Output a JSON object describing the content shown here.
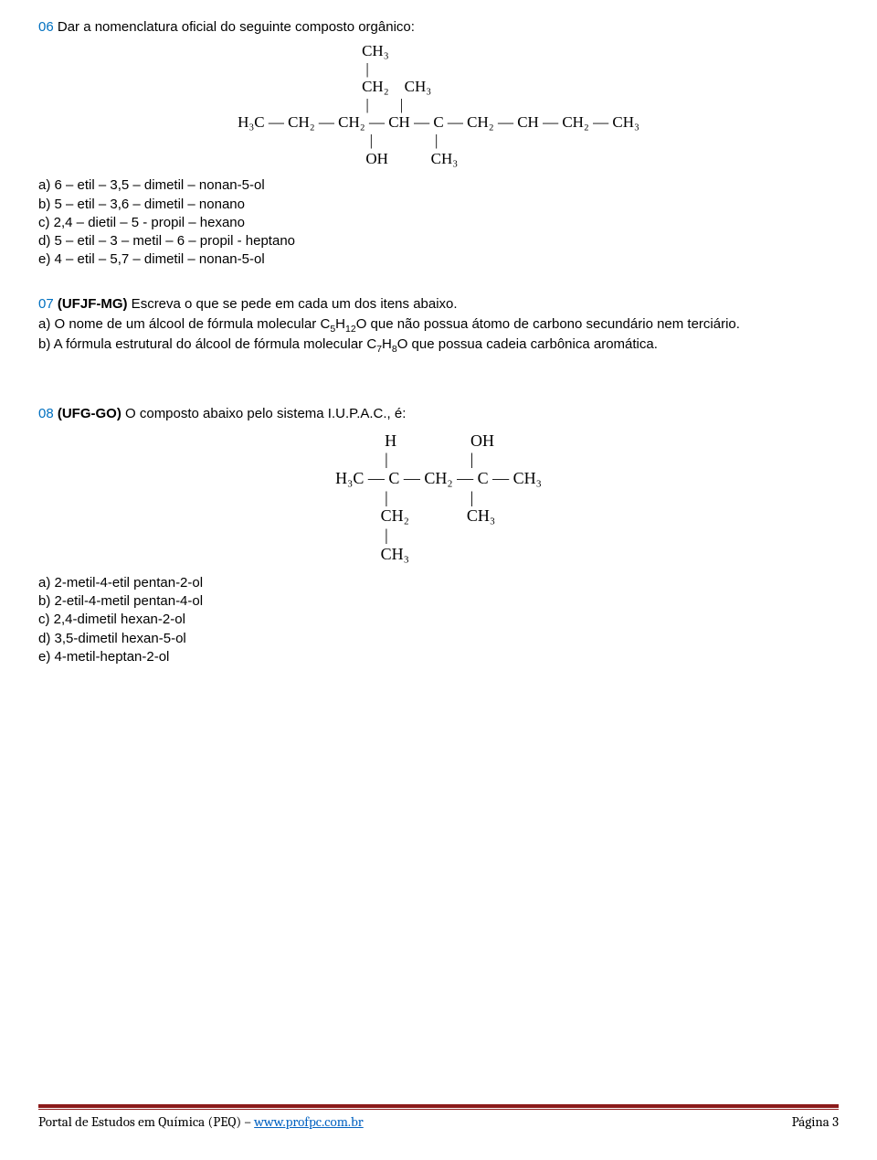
{
  "q6": {
    "num": "06",
    "prompt": "Dar a nomenclatura oficial do seguinte composto orgânico:",
    "diagram": {
      "r1": "                                CH₃",
      "r2": "                                 |",
      "r3": "                                CH₂    CH₃",
      "r4": "                                 |        |",
      "r5": "H₃C — CH₂ — CH₂ — CH — C — CH₂ — CH — CH₂ — CH₃",
      "r6": "                                  |                |",
      "r7": "                                 OH           CH₃"
    },
    "opts": {
      "a": "a) 6 – etil – 3,5 – dimetil – nonan-5-ol",
      "b": "b) 5 – etil – 3,6 – dimetil – nonano",
      "c": "c) 2,4 – dietil – 5 - propil – hexano",
      "d": "d) 5 – etil – 3 – metil – 6 – propil - heptano",
      "e": "e) 4 – etil – 5,7 – dimetil – nonan-5-ol"
    }
  },
  "q7": {
    "num": "07",
    "source": "(UFJF-MG)",
    "prompt": " Escreva o que se pede em cada um dos itens abaixo.",
    "part_a_pre": "a) O nome de um álcool de fórmula molecular C",
    "part_a_sub1": "5",
    "part_a_mid1": "H",
    "part_a_sub2": "12",
    "part_a_mid2": "O que não possua átomo de carbono secundário nem terciário.",
    "part_b_pre": "b) A fórmula estrutural do álcool de fórmula molecular C",
    "part_b_sub1": "7",
    "part_b_mid1": "H",
    "part_b_sub2": "8",
    "part_b_mid2": "O que possua cadeia carbônica aromática."
  },
  "q8": {
    "num": "08",
    "source": "(UFG-GO)",
    "prompt": " O composto abaixo pelo sistema I.U.P.A.C., é:",
    "diagram": {
      "r1": "            H                  OH",
      "r2": "            |                    |",
      "r3": "H₃C — C — CH₂ — C — CH₃",
      "r4": "            |                    |",
      "r5": "           CH₂              CH₃",
      "r6": "            |",
      "r7": "           CH₃"
    },
    "opts": {
      "a": "a) 2-metil-4-etil pentan-2-ol",
      "b": "b) 2-etil-4-metil pentan-4-ol",
      "c": "c) 2,4-dimetil hexan-2-ol",
      "d": "d) 3,5-dimetil hexan-5-ol",
      "e": "e) 4-metil-heptan-2-ol"
    }
  },
  "footer": {
    "left_pre": "Portal de Estudos em Química (PEQ) – ",
    "link": "www.profpc.com.br",
    "right": "Página 3"
  }
}
